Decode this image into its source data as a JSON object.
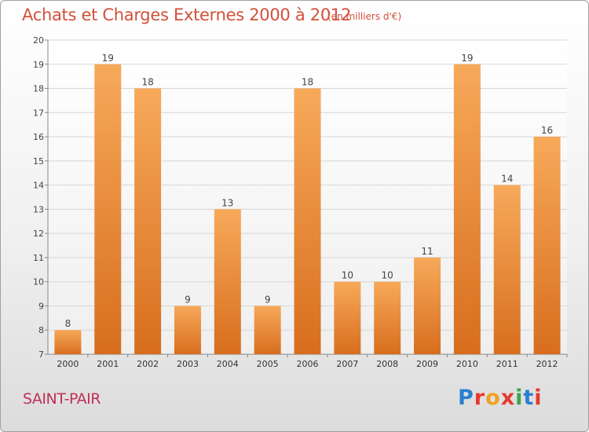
{
  "header": {
    "title": "Achats et Charges Externes 2000 à 2012",
    "subtitle": "(en milliers d'€)"
  },
  "footer": {
    "commune": "SAINT-PAIR",
    "logo_text": "Proxiti",
    "logo_colors": [
      "#2a7fd0",
      "#e6392e",
      "#f0a020",
      "#e6392e",
      "#3aa64a",
      "#2a7fd0",
      "#e6392e"
    ]
  },
  "colors": {
    "bar_light": "#f7a95a",
    "bar_dark": "#d76e1e",
    "title": "#d2503a",
    "commune": "#c0305a",
    "grid": "#d6d6d6"
  },
  "chart_data": {
    "type": "bar",
    "title": "Achats et Charges Externes 2000 à 2012",
    "subtitle": "(en milliers d'€)",
    "categories": [
      "2000",
      "2001",
      "2002",
      "2003",
      "2004",
      "2005",
      "2006",
      "2007",
      "2008",
      "2009",
      "2010",
      "2011",
      "2012"
    ],
    "values": [
      8,
      19,
      18,
      9,
      13,
      9,
      18,
      10,
      10,
      11,
      19,
      14,
      16
    ],
    "ylim": [
      7,
      20
    ],
    "yticks": [
      7,
      8,
      9,
      10,
      11,
      12,
      13,
      14,
      15,
      16,
      17,
      18,
      19,
      20
    ],
    "grid": true,
    "xlabel": "",
    "ylabel": ""
  }
}
